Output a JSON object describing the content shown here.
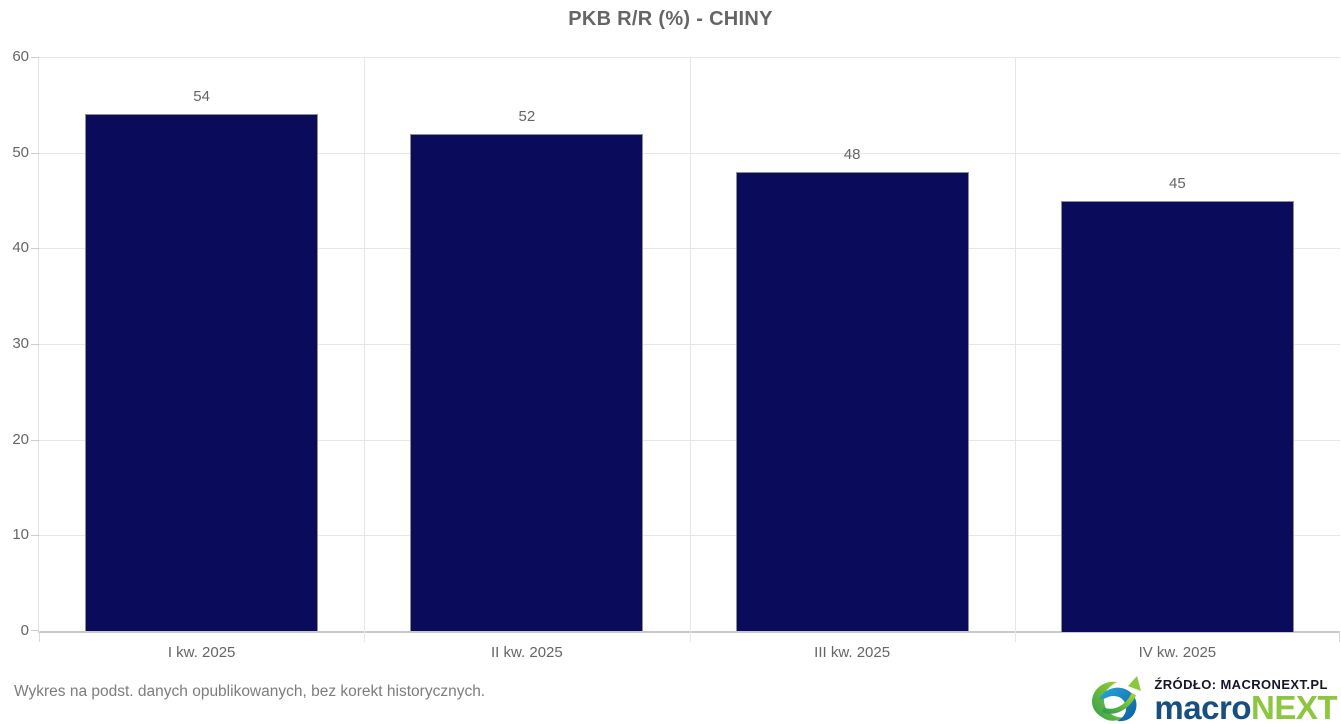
{
  "chart_data": {
    "type": "bar",
    "title": "PKB R/R (%) - CHINY",
    "categories": [
      "I kw. 2025",
      "II kw. 2025",
      "III kw. 2025",
      "IV kw. 2025"
    ],
    "values": [
      54,
      52,
      48,
      45
    ],
    "data_labels": [
      "54",
      "52",
      "48",
      "45"
    ],
    "xlabel": "",
    "ylabel": "",
    "ylim": [
      0,
      60
    ],
    "yticks": [
      0,
      10,
      20,
      30,
      40,
      50,
      60
    ],
    "grid": "horizontal-lines-and-category-separators",
    "legend": "none",
    "bar_color": "#0a0b5a",
    "bar_border_color": "#8f8f8f",
    "label_color": "#666666"
  },
  "footer": {
    "note": "Wykres na podst. danych opublikowanych, bez korekt historycznych.",
    "source_label": "ŹRÓDŁO: MACRONEXT.PL",
    "brand_word_blue": "macro",
    "brand_word_green": "NEXT"
  },
  "colors": {
    "bar": "#0a0b5a",
    "grid": "#e6e6e6",
    "axis_line": "#c9c9c9",
    "text_gray": "#666666",
    "footer_gray": "#7d7d7d",
    "brand_blue": "#17507f",
    "brand_green": "#8dc63f",
    "source_text": "#15152b"
  }
}
